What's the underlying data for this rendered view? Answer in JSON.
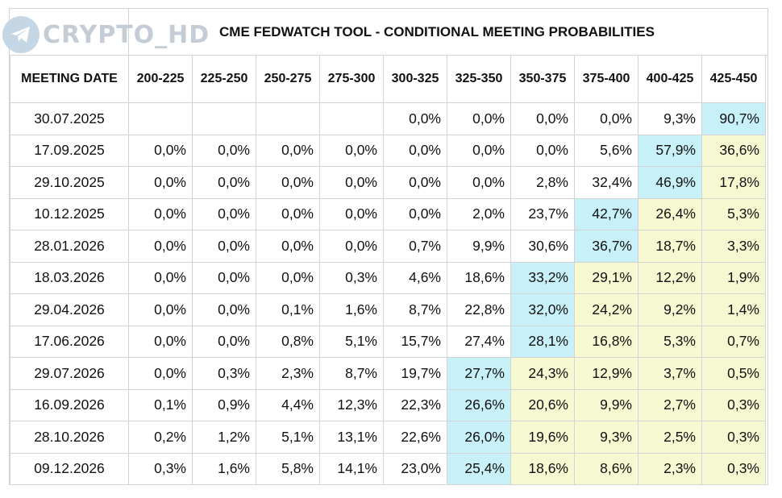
{
  "watermark": {
    "text": "CRYPTO_HD",
    "icon": "telegram-icon"
  },
  "title": "CME FEDWATCH TOOL - CONDITIONAL MEETING PROBABILITIES",
  "colors": {
    "highlight_max": "#c8f0f8",
    "highlight_above": "#f5f8d0",
    "grid": "#d3d3d3"
  },
  "columns": [
    "MEETING DATE",
    "200-225",
    "225-250",
    "250-275",
    "275-300",
    "300-325",
    "325-350",
    "350-375",
    "375-400",
    "400-425",
    "425-450"
  ],
  "rows": [
    {
      "date": "30.07.2025",
      "values": [
        "",
        "",
        "",
        "",
        "0,0%",
        "0,0%",
        "0,0%",
        "0,0%",
        "9,3%",
        "90,7%"
      ],
      "max_index": 9
    },
    {
      "date": "17.09.2025",
      "values": [
        "0,0%",
        "0,0%",
        "0,0%",
        "0,0%",
        "0,0%",
        "0,0%",
        "0,0%",
        "5,6%",
        "57,9%",
        "36,6%"
      ],
      "max_index": 8
    },
    {
      "date": "29.10.2025",
      "values": [
        "0,0%",
        "0,0%",
        "0,0%",
        "0,0%",
        "0,0%",
        "0,0%",
        "2,8%",
        "32,4%",
        "46,9%",
        "17,8%"
      ],
      "max_index": 8
    },
    {
      "date": "10.12.2025",
      "values": [
        "0,0%",
        "0,0%",
        "0,0%",
        "0,0%",
        "0,0%",
        "2,0%",
        "23,7%",
        "42,7%",
        "26,4%",
        "5,3%"
      ],
      "max_index": 7
    },
    {
      "date": "28.01.2026",
      "values": [
        "0,0%",
        "0,0%",
        "0,0%",
        "0,0%",
        "0,7%",
        "9,9%",
        "30,6%",
        "36,7%",
        "18,7%",
        "3,3%"
      ],
      "max_index": 7
    },
    {
      "date": "18.03.2026",
      "values": [
        "0,0%",
        "0,0%",
        "0,0%",
        "0,3%",
        "4,6%",
        "18,6%",
        "33,2%",
        "29,1%",
        "12,2%",
        "1,9%"
      ],
      "max_index": 6
    },
    {
      "date": "29.04.2026",
      "values": [
        "0,0%",
        "0,0%",
        "0,1%",
        "1,6%",
        "8,7%",
        "22,8%",
        "32,0%",
        "24,2%",
        "9,2%",
        "1,4%"
      ],
      "max_index": 6
    },
    {
      "date": "17.06.2026",
      "values": [
        "0,0%",
        "0,0%",
        "0,8%",
        "5,1%",
        "15,7%",
        "27,4%",
        "28,1%",
        "16,8%",
        "5,3%",
        "0,7%"
      ],
      "max_index": 6
    },
    {
      "date": "29.07.2026",
      "values": [
        "0,0%",
        "0,3%",
        "2,3%",
        "8,7%",
        "19,7%",
        "27,7%",
        "24,3%",
        "12,9%",
        "3,7%",
        "0,5%"
      ],
      "max_index": 5
    },
    {
      "date": "16.09.2026",
      "values": [
        "0,1%",
        "0,9%",
        "4,4%",
        "12,3%",
        "22,3%",
        "26,6%",
        "20,6%",
        "9,9%",
        "2,7%",
        "0,3%"
      ],
      "max_index": 5
    },
    {
      "date": "28.10.2026",
      "values": [
        "0,2%",
        "1,2%",
        "5,1%",
        "13,1%",
        "22,6%",
        "26,0%",
        "19,6%",
        "9,3%",
        "2,5%",
        "0,3%"
      ],
      "max_index": 5
    },
    {
      "date": "09.12.2026",
      "values": [
        "0,3%",
        "1,6%",
        "5,8%",
        "14,1%",
        "23,0%",
        "25,4%",
        "18,6%",
        "8,6%",
        "2,3%",
        "0,3%"
      ],
      "max_index": 5
    }
  ]
}
